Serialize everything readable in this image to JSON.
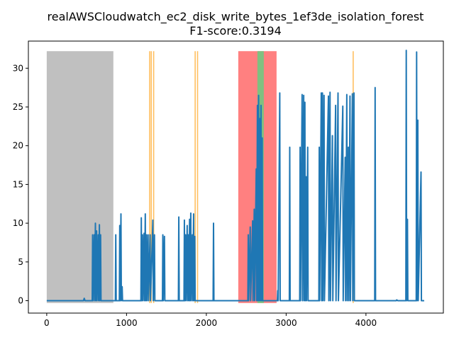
{
  "chart_data": {
    "type": "line",
    "title_line1": "realAWSCloudwatch_ec2_disk_write_bytes_1ef3de_isolation_forest",
    "title_line2": "F1-score:0.3194",
    "xlabel": "",
    "ylabel": "",
    "xlim": [
      -230,
      4970
    ],
    "ylim": [
      -1.6,
      33.5
    ],
    "xticks": [
      0,
      1000,
      2000,
      3000,
      4000
    ],
    "yticks": [
      0,
      5,
      10,
      15,
      20,
      25,
      30
    ],
    "grid": false,
    "colors": {
      "line": "#1f77b4",
      "gray_region": "#c0c0c0",
      "red_region": "#ff8080",
      "green_region": "#80c080",
      "orange_marker": "#ffbf60"
    },
    "shaded_regions": [
      {
        "kind": "gray",
        "x0": 0,
        "x1": 835,
        "ymax": 32.2
      },
      {
        "kind": "red",
        "x0": 2400,
        "x1": 2880,
        "ymax": 32.2
      },
      {
        "kind": "green",
        "x0": 2640,
        "x1": 2720,
        "ymax": 32.2
      }
    ],
    "orange_markers": [
      1290,
      1310,
      1340,
      1860,
      1890,
      3840
    ],
    "series": [
      {
        "values_xy": [
          [
            0,
            0
          ],
          [
            460,
            0
          ],
          [
            470,
            0.3
          ],
          [
            480,
            0
          ],
          [
            570,
            0
          ],
          [
            575,
            8.5
          ],
          [
            580,
            0
          ],
          [
            595,
            8.5
          ],
          [
            600,
            0
          ],
          [
            610,
            10
          ],
          [
            615,
            0
          ],
          [
            625,
            9
          ],
          [
            630,
            0
          ],
          [
            645,
            8.5
          ],
          [
            650,
            0
          ],
          [
            660,
            9.8
          ],
          [
            665,
            0
          ],
          [
            675,
            8.5
          ],
          [
            680,
            0
          ],
          [
            860,
            0
          ],
          [
            865,
            8.5
          ],
          [
            870,
            0
          ],
          [
            910,
            0
          ],
          [
            915,
            9.7
          ],
          [
            920,
            0
          ],
          [
            930,
            11.2
          ],
          [
            935,
            0
          ],
          [
            945,
            1.8
          ],
          [
            950,
            0
          ],
          [
            1180,
            0
          ],
          [
            1185,
            10.7
          ],
          [
            1190,
            0
          ],
          [
            1200,
            8.5
          ],
          [
            1205,
            0
          ],
          [
            1220,
            8.7
          ],
          [
            1225,
            0
          ],
          [
            1235,
            11.2
          ],
          [
            1240,
            0
          ],
          [
            1250,
            8.5
          ],
          [
            1255,
            0
          ],
          [
            1270,
            8.5
          ],
          [
            1275,
            0
          ],
          [
            1295,
            8.5
          ],
          [
            1300,
            0
          ],
          [
            1330,
            10.4
          ],
          [
            1335,
            0
          ],
          [
            1350,
            8.5
          ],
          [
            1355,
            0
          ],
          [
            1450,
            0
          ],
          [
            1455,
            8.5
          ],
          [
            1460,
            0
          ],
          [
            1475,
            8.3
          ],
          [
            1480,
            0
          ],
          [
            1650,
            0
          ],
          [
            1655,
            10.8
          ],
          [
            1660,
            0
          ],
          [
            1720,
            0
          ],
          [
            1725,
            10.4
          ],
          [
            1730,
            0
          ],
          [
            1740,
            8.5
          ],
          [
            1745,
            0
          ],
          [
            1760,
            9.7
          ],
          [
            1765,
            0
          ],
          [
            1775,
            8.5
          ],
          [
            1780,
            0
          ],
          [
            1790,
            10.5
          ],
          [
            1795,
            0
          ],
          [
            1805,
            11.3
          ],
          [
            1810,
            0
          ],
          [
            1825,
            8.5
          ],
          [
            1830,
            0
          ],
          [
            1840,
            11.2
          ],
          [
            1845,
            0
          ],
          [
            1855,
            8.3
          ],
          [
            1860,
            0
          ],
          [
            2085,
            0
          ],
          [
            2090,
            10
          ],
          [
            2095,
            0
          ],
          [
            2520,
            0
          ],
          [
            2525,
            8.5
          ],
          [
            2530,
            0
          ],
          [
            2550,
            9.5
          ],
          [
            2555,
            0
          ],
          [
            2580,
            10.3
          ],
          [
            2585,
            0
          ],
          [
            2600,
            11.8
          ],
          [
            2605,
            0
          ],
          [
            2625,
            17
          ],
          [
            2630,
            0
          ],
          [
            2640,
            25.2
          ],
          [
            2645,
            0
          ],
          [
            2655,
            26.5
          ],
          [
            2660,
            0
          ],
          [
            2670,
            23.5
          ],
          [
            2675,
            0
          ],
          [
            2685,
            25.2
          ],
          [
            2690,
            0
          ],
          [
            2700,
            21
          ],
          [
            2705,
            0
          ],
          [
            2890,
            0
          ],
          [
            2895,
            1.3
          ],
          [
            2900,
            0
          ],
          [
            2920,
            26.8
          ],
          [
            2925,
            0
          ],
          [
            3040,
            0
          ],
          [
            3045,
            19.8
          ],
          [
            3050,
            0
          ],
          [
            3170,
            0
          ],
          [
            3175,
            19.8
          ],
          [
            3180,
            0
          ],
          [
            3200,
            26.6
          ],
          [
            3205,
            0
          ],
          [
            3220,
            26.5
          ],
          [
            3225,
            0
          ],
          [
            3235,
            25.6
          ],
          [
            3240,
            0
          ],
          [
            3250,
            16
          ],
          [
            3255,
            0
          ],
          [
            3270,
            19.8
          ],
          [
            3275,
            0
          ],
          [
            3410,
            0
          ],
          [
            3415,
            19.8
          ],
          [
            3420,
            0
          ],
          [
            3440,
            26.8
          ],
          [
            3445,
            0
          ],
          [
            3455,
            26.8
          ],
          [
            3460,
            0
          ],
          [
            3475,
            26.5
          ],
          [
            3480,
            0
          ],
          [
            3530,
            26.4
          ],
          [
            3535,
            0
          ],
          [
            3550,
            26.9
          ],
          [
            3555,
            0
          ],
          [
            3580,
            21.3
          ],
          [
            3585,
            0
          ],
          [
            3620,
            25.2
          ],
          [
            3625,
            0
          ],
          [
            3650,
            26.8
          ],
          [
            3655,
            0
          ],
          [
            3710,
            25.1
          ],
          [
            3715,
            0
          ],
          [
            3740,
            18.5
          ],
          [
            3745,
            0
          ],
          [
            3760,
            26.6
          ],
          [
            3765,
            0
          ],
          [
            3780,
            19.8
          ],
          [
            3785,
            0
          ],
          [
            3800,
            26.4
          ],
          [
            3805,
            0
          ],
          [
            3830,
            26.7
          ],
          [
            3835,
            0
          ],
          [
            3850,
            26.8
          ],
          [
            3855,
            0
          ],
          [
            4110,
            0
          ],
          [
            4115,
            27.5
          ],
          [
            4120,
            0
          ],
          [
            4380,
            0
          ],
          [
            4385,
            0.1
          ],
          [
            4400,
            0
          ],
          [
            4500,
            0
          ],
          [
            4505,
            32.3
          ],
          [
            4510,
            0
          ],
          [
            4520,
            10.5
          ],
          [
            4525,
            0
          ],
          [
            4630,
            0
          ],
          [
            4635,
            32.1
          ],
          [
            4640,
            0
          ],
          [
            4650,
            23.3
          ],
          [
            4655,
            0
          ],
          [
            4690,
            16.6
          ],
          [
            4695,
            0
          ],
          [
            4730,
            0
          ]
        ]
      }
    ]
  }
}
